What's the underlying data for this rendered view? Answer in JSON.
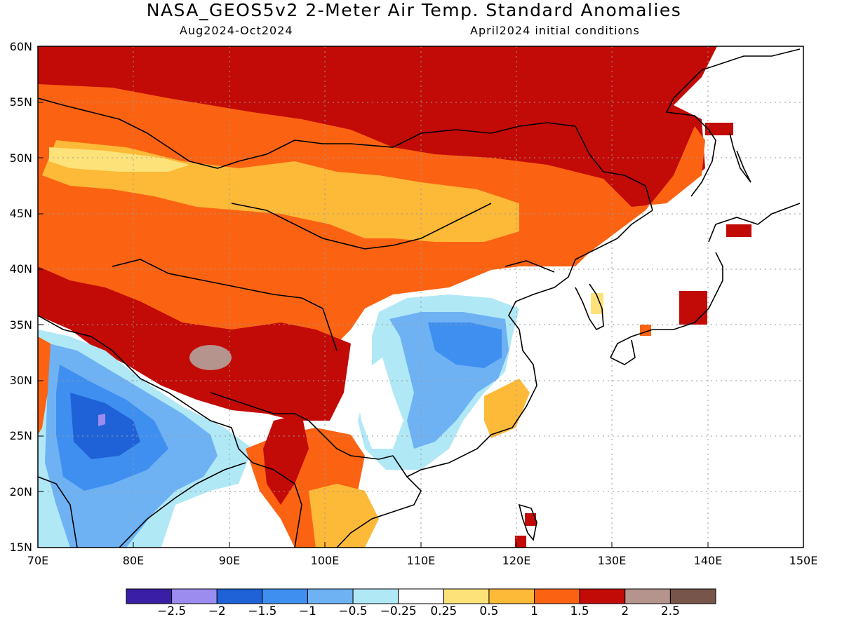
{
  "title": "NASA_GEOS5v2 2-Meter Air Temp. Standard Anomalies",
  "subtitle_left": "Aug2024-Oct2024",
  "subtitle_right": "April2024 initial conditions",
  "lat_labels": [
    "60N",
    "55N",
    "50N",
    "45N",
    "40N",
    "35N",
    "30N",
    "25N",
    "20N",
    "15N"
  ],
  "lon_labels": [
    "70E",
    "80E",
    "90E",
    "100E",
    "110E",
    "120E",
    "130E",
    "140E",
    "150E"
  ],
  "colorbar": {
    "colors": [
      "#3a1fa6",
      "#9c8cf0",
      "#1f62d8",
      "#3f8ff0",
      "#6eb2f4",
      "#b0e8f6",
      "#ffffff",
      "#fde27a",
      "#fdb938",
      "#fb6313",
      "#c20a06",
      "#b5948e",
      "#77554b"
    ],
    "labels": [
      "-2.5",
      "-2",
      "-1.5",
      "-1",
      "-0.5",
      "-0.25",
      "0.25",
      "0.5",
      "1",
      "1.5",
      "2",
      "2.5"
    ]
  }
}
